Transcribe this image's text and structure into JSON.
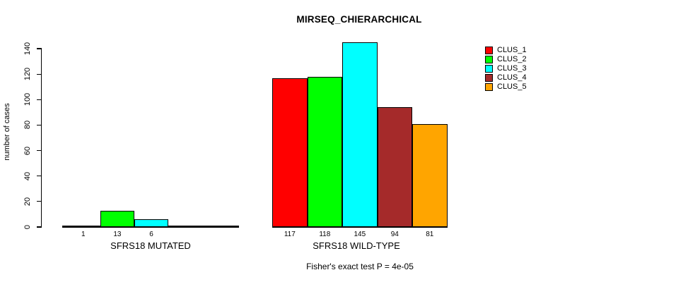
{
  "chart_data": {
    "type": "bar",
    "title": "MIRSEQ_CHIERARCHICAL",
    "ylabel": "number of cases",
    "xlabel": "",
    "ylim": [
      0,
      145
    ],
    "yticks": [
      0,
      20,
      40,
      60,
      80,
      100,
      120,
      140
    ],
    "grid": false,
    "legend_position": "top-right",
    "series": [
      {
        "name": "CLUS_1",
        "color": "#ff0000"
      },
      {
        "name": "CLUS_2",
        "color": "#00ff00"
      },
      {
        "name": "CLUS_3",
        "color": "#00ffff"
      },
      {
        "name": "CLUS_4",
        "color": "#a52a2a"
      },
      {
        "name": "CLUS_5",
        "color": "#ffa500"
      }
    ],
    "groups": [
      {
        "label": "SFRS18 MUTATED",
        "values": [
          1,
          13,
          6,
          0,
          0
        ],
        "value_labels": [
          "1",
          "13",
          "6",
          "",
          ""
        ]
      },
      {
        "label": "SFRS18 WILD-TYPE",
        "values": [
          117,
          118,
          145,
          94,
          81
        ],
        "value_labels": [
          "117",
          "118",
          "145",
          "94",
          "81"
        ]
      }
    ],
    "annotation": "Fisher's exact test P = 4e-05"
  }
}
